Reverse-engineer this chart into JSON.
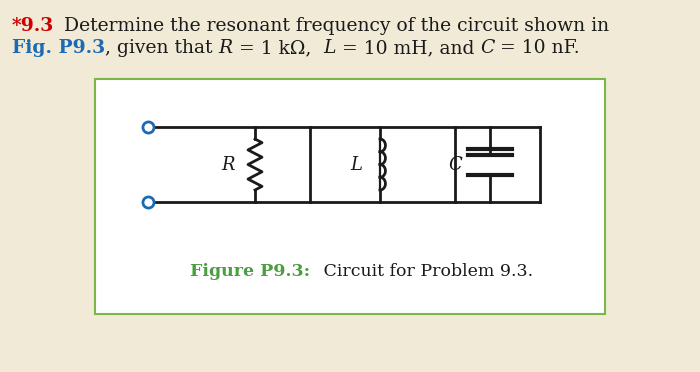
{
  "bg_color": "#f0ead6",
  "box_bg_color": "#ffffff",
  "box_border_color": "#7ab648",
  "star_color": "#cc0000",
  "blue_color": "#1a6ab5",
  "green_color": "#4a9e3f",
  "text_color": "#1a1a1a",
  "circuit_line_color": "#1a1a1a",
  "terminal_color": "#1a6ab5",
  "title_star": "*9.3",
  "title_rest1": "  Determine the resonant frequency of the circuit shown in",
  "title_fig_bold": "Fig. P9.3",
  "title_given": ", given that ",
  "title_R": "R",
  "title_eq1": " = 1 kΩ,  ",
  "title_L": "L",
  "title_eq2": " = 10 mH, and ",
  "title_C": "C",
  "title_eq3": " = 10 nF.",
  "cap_bold": "Figure P9.3:",
  "cap_rest": " Circuit for Problem 9.3."
}
